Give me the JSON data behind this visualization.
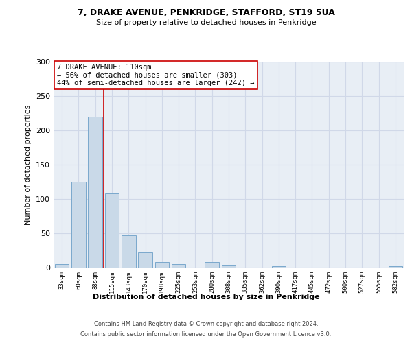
{
  "title1": "7, DRAKE AVENUE, PENKRIDGE, STAFFORD, ST19 5UA",
  "title2": "Size of property relative to detached houses in Penkridge",
  "xlabel": "Distribution of detached houses by size in Penkridge",
  "ylabel": "Number of detached properties",
  "bar_labels": [
    "33sqm",
    "60sqm",
    "88sqm",
    "115sqm",
    "143sqm",
    "170sqm",
    "198sqm",
    "225sqm",
    "253sqm",
    "280sqm",
    "308sqm",
    "335sqm",
    "362sqm",
    "390sqm",
    "417sqm",
    "445sqm",
    "472sqm",
    "500sqm",
    "527sqm",
    "555sqm",
    "582sqm"
  ],
  "bar_values": [
    5,
    125,
    220,
    108,
    47,
    22,
    8,
    5,
    0,
    8,
    3,
    0,
    0,
    2,
    0,
    0,
    0,
    0,
    0,
    0,
    2
  ],
  "bar_color": "#c9d9e8",
  "bar_edgecolor": "#7aa8cc",
  "vline_x": 2.5,
  "vline_color": "#cc0000",
  "annotation_text": "7 DRAKE AVENUE: 110sqm\n← 56% of detached houses are smaller (303)\n44% of semi-detached houses are larger (242) →",
  "annotation_box_edgecolor": "#cc0000",
  "annotation_box_facecolor": "#ffffff",
  "ylim": [
    0,
    300
  ],
  "yticks": [
    0,
    50,
    100,
    150,
    200,
    250,
    300
  ],
  "grid_color": "#d0d8e8",
  "bg_color": "#e8eef5",
  "footer1": "Contains HM Land Registry data © Crown copyright and database right 2024.",
  "footer2": "Contains public sector information licensed under the Open Government Licence v3.0."
}
